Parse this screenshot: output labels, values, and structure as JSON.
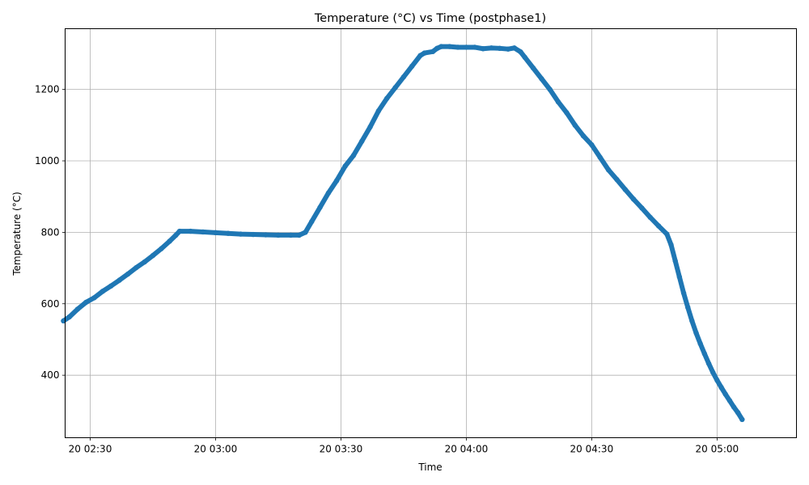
{
  "chart_data": {
    "type": "scatter",
    "title": "Temperature (°C) vs Time (postphase1)",
    "xlabel": "Time",
    "ylabel": "Temperature (°C)",
    "grid": true,
    "x_unit": "minutes since 20 00:00",
    "xlim": [
      144.0,
      319.0
    ],
    "ylim": [
      225,
      1370
    ],
    "x_ticks": [
      {
        "value": 150,
        "label": "20 02:30"
      },
      {
        "value": 180,
        "label": "20 03:00"
      },
      {
        "value": 210,
        "label": "20 03:30"
      },
      {
        "value": 240,
        "label": "20 04:00"
      },
      {
        "value": 270,
        "label": "20 04:30"
      },
      {
        "value": 300,
        "label": "20 05:00"
      }
    ],
    "y_ticks": [
      400,
      600,
      800,
      1000,
      1200
    ],
    "color": "#1f77b4",
    "series": [
      {
        "name": "",
        "points": [
          [
            143.6,
            552
          ],
          [
            145.0,
            563
          ],
          [
            147.0,
            585
          ],
          [
            149.0,
            604
          ],
          [
            151.0,
            617
          ],
          [
            153.0,
            635
          ],
          [
            155.0,
            650
          ],
          [
            157.0,
            666
          ],
          [
            159.0,
            683
          ],
          [
            161.0,
            701
          ],
          [
            163.0,
            717
          ],
          [
            165.0,
            735
          ],
          [
            167.0,
            754
          ],
          [
            169.0,
            775
          ],
          [
            170.5,
            792
          ],
          [
            171.4,
            803
          ],
          [
            174.0,
            803
          ],
          [
            177.0,
            801
          ],
          [
            180.0,
            799
          ],
          [
            183.0,
            797
          ],
          [
            186.0,
            795
          ],
          [
            189.0,
            794
          ],
          [
            192.0,
            793
          ],
          [
            195.0,
            792
          ],
          [
            198.0,
            792
          ],
          [
            200.0,
            792
          ],
          [
            201.5,
            800
          ],
          [
            203.0,
            830
          ],
          [
            205.0,
            870
          ],
          [
            207.0,
            910
          ],
          [
            209.0,
            945
          ],
          [
            211.0,
            985
          ],
          [
            213.0,
            1015
          ],
          [
            215.0,
            1055
          ],
          [
            217.0,
            1095
          ],
          [
            219.0,
            1140
          ],
          [
            221.0,
            1175
          ],
          [
            223.0,
            1205
          ],
          [
            225.0,
            1235
          ],
          [
            227.0,
            1265
          ],
          [
            229.0,
            1295
          ],
          [
            230.0,
            1302
          ],
          [
            232.0,
            1306
          ],
          [
            233.0,
            1315
          ],
          [
            234.0,
            1320
          ],
          [
            236.0,
            1320
          ],
          [
            238.0,
            1318
          ],
          [
            240.0,
            1318
          ],
          [
            242.0,
            1318
          ],
          [
            244.0,
            1314
          ],
          [
            246.0,
            1316
          ],
          [
            248.0,
            1315
          ],
          [
            250.0,
            1313
          ],
          [
            251.5,
            1316
          ],
          [
            253.0,
            1305
          ],
          [
            254.0,
            1290
          ],
          [
            256.0,
            1260
          ],
          [
            258.0,
            1230
          ],
          [
            260.0,
            1200
          ],
          [
            262.0,
            1165
          ],
          [
            264.0,
            1135
          ],
          [
            266.0,
            1100
          ],
          [
            268.0,
            1070
          ],
          [
            270.0,
            1045
          ],
          [
            272.0,
            1010
          ],
          [
            274.0,
            975
          ],
          [
            276.0,
            948
          ],
          [
            278.0,
            920
          ],
          [
            280.0,
            893
          ],
          [
            282.0,
            868
          ],
          [
            284.0,
            842
          ],
          [
            286.0,
            818
          ],
          [
            288.0,
            795
          ],
          [
            289.0,
            765
          ],
          [
            290.0,
            720
          ],
          [
            291.0,
            675
          ],
          [
            292.0,
            630
          ],
          [
            293.0,
            590
          ],
          [
            294.0,
            552
          ],
          [
            295.0,
            518
          ],
          [
            296.0,
            488
          ],
          [
            297.0,
            460
          ],
          [
            298.0,
            433
          ],
          [
            299.0,
            408
          ],
          [
            300.0,
            386
          ],
          [
            301.0,
            366
          ],
          [
            302.0,
            347
          ],
          [
            303.0,
            329
          ],
          [
            304.0,
            311
          ],
          [
            305.0,
            295
          ],
          [
            306.0,
            276
          ]
        ]
      }
    ]
  }
}
